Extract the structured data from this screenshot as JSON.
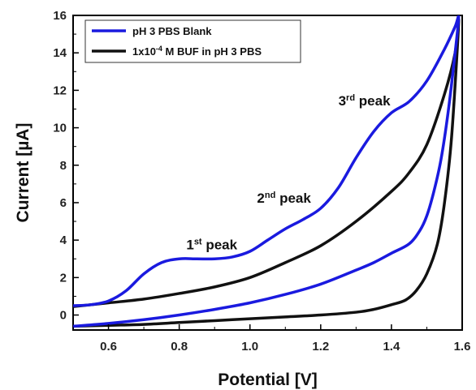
{
  "chart_data": {
    "type": "line",
    "xlabel": "Potential [V]",
    "ylabel": "Current [µA]",
    "xlim": [
      0.5,
      1.6
    ],
    "ylim": [
      -0.8,
      16
    ],
    "x_ticks": [
      0.6,
      0.8,
      1.0,
      1.2,
      1.4,
      1.6
    ],
    "x_tick_labels": [
      "0.6",
      "0.8",
      "1.0",
      "1.2",
      "1.4",
      "1.6"
    ],
    "y_ticks": [
      0,
      2,
      4,
      6,
      8,
      10,
      12,
      14,
      16
    ],
    "y_tick_labels": [
      "0",
      "2",
      "4",
      "6",
      "8",
      "10",
      "12",
      "14",
      "16"
    ],
    "grid": false,
    "legend_position": "top-left",
    "series": [
      {
        "name": "pH 3 PBS Blank",
        "color": "#1a1adf",
        "x": [
          0.5,
          0.55,
          0.6,
          0.65,
          0.7,
          0.75,
          0.8,
          0.85,
          0.9,
          0.95,
          1.0,
          1.05,
          1.1,
          1.15,
          1.2,
          1.25,
          1.3,
          1.35,
          1.4,
          1.45,
          1.5,
          1.55,
          1.58,
          1.59,
          1.58,
          1.56,
          1.54,
          1.52,
          1.5,
          1.48,
          1.45,
          1.4,
          1.35,
          1.3,
          1.2,
          1.1,
          1.0,
          0.9,
          0.8,
          0.7,
          0.6,
          0.5
        ],
        "y": [
          0.5,
          0.55,
          0.75,
          1.3,
          2.2,
          2.8,
          3.0,
          3.0,
          3.0,
          3.1,
          3.4,
          4.0,
          4.6,
          5.1,
          5.7,
          6.8,
          8.4,
          9.8,
          10.8,
          11.4,
          12.5,
          14.2,
          15.4,
          15.9,
          14.0,
          10.8,
          8.3,
          6.6,
          5.3,
          4.5,
          3.8,
          3.3,
          2.8,
          2.4,
          1.65,
          1.1,
          0.65,
          0.3,
          0.0,
          -0.25,
          -0.45,
          -0.6
        ]
      },
      {
        "name": "1x10-4 M BUF in pH 3 PBS",
        "color": "#111111",
        "x": [
          0.5,
          0.6,
          0.7,
          0.8,
          0.9,
          1.0,
          1.1,
          1.2,
          1.3,
          1.4,
          1.45,
          1.5,
          1.55,
          1.58,
          1.59,
          1.57,
          1.55,
          1.53,
          1.5,
          1.47,
          1.44,
          1.4,
          1.35,
          1.3,
          1.2,
          1.1,
          1.0,
          0.9,
          0.8,
          0.7,
          0.6,
          0.5
        ],
        "y": [
          0.45,
          0.65,
          0.85,
          1.15,
          1.5,
          2.0,
          2.8,
          3.7,
          5.0,
          6.6,
          7.6,
          9.1,
          11.8,
          14.0,
          15.6,
          9.5,
          6.0,
          3.8,
          2.2,
          1.3,
          0.8,
          0.55,
          0.3,
          0.15,
          0.0,
          -0.1,
          -0.2,
          -0.3,
          -0.4,
          -0.5,
          -0.55,
          -0.6
        ]
      }
    ],
    "annotations": [
      {
        "base": "1",
        "sup": "st",
        "text": " peak",
        "x": 0.82,
        "y": 3.5
      },
      {
        "base": "2",
        "sup": "nd",
        "text": " peak",
        "x": 1.02,
        "y": 6.0
      },
      {
        "base": "3",
        "sup": "rd",
        "text": " peak",
        "x": 1.25,
        "y": 11.2
      }
    ],
    "legend_labels": {
      "blank": "pH 3 PBS Blank",
      "buf_pre": "1x10",
      "buf_sup": "-4",
      "buf_post": " M BUF in pH 3 PBS"
    }
  }
}
